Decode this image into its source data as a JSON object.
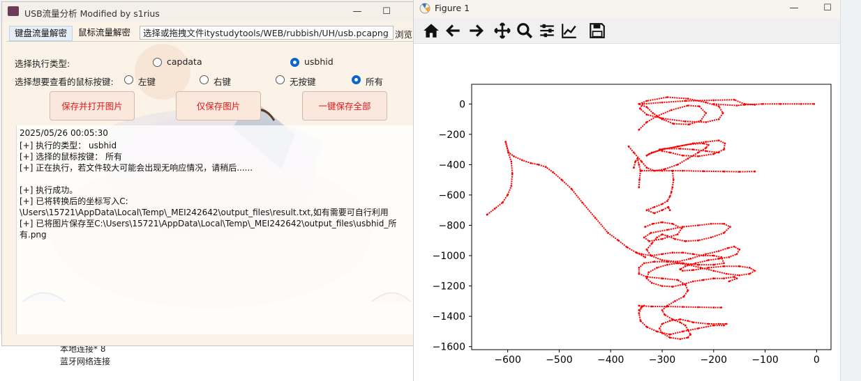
{
  "usb_window": {
    "title": "USB流量分析 Modified by s1rius",
    "minimize": "—",
    "maximize": "☐",
    "tabs": [
      {
        "label": "键盘流量解密"
      },
      {
        "label": "鼠标流量解密"
      }
    ],
    "file_path_value": "选择或拖拽文件itystudytools/WEB/rubbish/UH/usb.pcapng",
    "browse_label": "浏览",
    "exec_type_label": "选择执行类型:",
    "exec_options": [
      {
        "label": "capdata",
        "selected": false
      },
      {
        "label": "usbhid",
        "selected": true
      }
    ],
    "mouse_button_label": "选择想要查看的鼠标按键:",
    "mouse_options": [
      {
        "label": "左键",
        "selected": false
      },
      {
        "label": "右键",
        "selected": false
      },
      {
        "label": "无按键",
        "selected": false
      },
      {
        "label": "所有",
        "selected": true
      }
    ],
    "buttons": {
      "save_open": "保存并打开图片",
      "save_only": "仅保存图片",
      "save_all": "一键保存全部"
    },
    "log_lines": [
      "2025/05/26 00:05:30",
      "[+] 执行的类型： usbhid",
      "[+] 选择的鼠标按键： 所有",
      "[+] 正在执行，若文件较大可能会出现无响应情况，请稍后......",
      "",
      "[+] 执行成功。",
      "[+] 已将转换后的坐标写入C:",
      "\\Users\\15721\\AppData\\Local\\Temp\\_MEI242642\\output_files\\result.txt,如有需要可自行利用",
      "[+] 已将图片保存至C:\\Users\\15721\\AppData\\Local\\Temp\\_MEI242642\\output_files\\usbhid_所",
      "有.png"
    ]
  },
  "desktop": {
    "items": [
      "本地连接* 8",
      "蓝牙网络连接"
    ]
  },
  "figure_window": {
    "title": "Figure 1",
    "minimize": "—",
    "maximize": "☐",
    "toolbar_icons": [
      "home-icon",
      "back-icon",
      "forward-icon",
      "pan-icon",
      "zoom-icon",
      "configure-subplots-icon",
      "edit-axis-icon",
      "save-icon"
    ]
  },
  "chart_data": {
    "type": "scatter",
    "title": "",
    "xlabel": "",
    "ylabel": "",
    "xlim": [
      -670,
      28
    ],
    "ylim": [
      -1620,
      130
    ],
    "xticks": [
      -600,
      -500,
      -400,
      -300,
      -200,
      -100,
      0
    ],
    "yticks": [
      0,
      -200,
      -400,
      -600,
      -800,
      -1000,
      -1200,
      -1400,
      -1600
    ],
    "color": "#ff0000",
    "grid": false,
    "series": [
      {
        "x": [
          -640,
          -625,
          -610,
          -600,
          -593,
          -591,
          -593,
          -599,
          -604,
          -598,
          -588,
          -572,
          -555,
          -540,
          -526,
          -512,
          -495,
          -476,
          -455,
          -430,
          -405,
          -385,
          -368,
          -350,
          -333
        ],
        "y": [
          -730,
          -690,
          -650,
          -600,
          -540,
          -460,
          -380,
          -320,
          -250,
          -320,
          -345,
          -370,
          -390,
          -400,
          -415,
          -450,
          -500,
          -560,
          -650,
          -750,
          -850,
          -900,
          -945,
          -980,
          -1010
        ]
      },
      {
        "x": [
          -345,
          -330,
          -310,
          -282,
          -250,
          -228,
          -215,
          -225,
          -248,
          -278,
          -300,
          -318,
          -330,
          -345,
          -330,
          -290,
          -250,
          -215,
          -190,
          -182,
          -190,
          -215,
          -255,
          -300,
          -330,
          -343,
          -338,
          -300,
          -255,
          -200,
          -160,
          -140,
          -120
        ],
        "y": [
          -170,
          -120,
          -80,
          -40,
          -10,
          -15,
          -60,
          -110,
          -135,
          -130,
          -100,
          -60,
          -20,
          0,
          20,
          45,
          35,
          10,
          -15,
          -60,
          -100,
          -120,
          -115,
          -95,
          -70,
          -30,
          0,
          10,
          20,
          25,
          28,
          0,
          -5
        ]
      },
      {
        "x": [
          -200,
          -155,
          -140,
          -105,
          -70,
          -30,
          -5
        ],
        "y": [
          0,
          -10,
          -5,
          0,
          0,
          0,
          0
        ]
      },
      {
        "x": [
          -365,
          -355,
          -340,
          -330,
          -315,
          -295,
          -270,
          -250,
          -230,
          -215,
          -210,
          -220,
          -245,
          -270,
          -300,
          -320,
          -330,
          -325,
          -300,
          -270,
          -240,
          -215,
          -190,
          -178,
          -180,
          -200,
          -230,
          -260,
          -285,
          -300,
          -305,
          -295,
          -265,
          -240,
          -215,
          -190
        ],
        "y": [
          -280,
          -320,
          -380,
          -420,
          -440,
          -430,
          -400,
          -360,
          -320,
          -290,
          -270,
          -260,
          -265,
          -280,
          -300,
          -320,
          -340,
          -330,
          -300,
          -280,
          -260,
          -250,
          -240,
          -260,
          -300,
          -330,
          -345,
          -340,
          -320,
          -310,
          -300,
          -295,
          -295,
          -300,
          -310,
          -320
        ]
      },
      {
        "x": [
          -355,
          -352,
          -348,
          -345,
          -342,
          -344,
          -345
        ],
        "y": [
          -420,
          -380,
          -360,
          -400,
          -440,
          -500,
          -550
        ]
      },
      {
        "x": [
          -340,
          -300,
          -260,
          -220,
          -180,
          -150,
          -120
        ],
        "y": [
          -440,
          -440,
          -440,
          -443,
          -445,
          -447,
          -445
        ]
      },
      {
        "x": [
          -280,
          -278,
          -280,
          -282,
          -285,
          -290,
          -300,
          -315,
          -330,
          -315,
          -300,
          -288,
          -285
        ],
        "y": [
          -440,
          -500,
          -550,
          -580,
          -610,
          -640,
          -660,
          -680,
          -700,
          -720,
          -700,
          -680,
          -700
        ]
      },
      {
        "x": [
          -333,
          -318,
          -300,
          -280,
          -262,
          -270,
          -300,
          -325,
          -335,
          -322,
          -290,
          -260,
          -230,
          -205,
          -180,
          -168,
          -180,
          -205,
          -230,
          -255,
          -275,
          -290,
          -300,
          -310,
          -320,
          -330,
          -322,
          -300,
          -270,
          -245,
          -215,
          -190,
          -172,
          -160,
          -150,
          -155,
          -170,
          -190,
          -210,
          -235,
          -255,
          -265,
          -260,
          -240,
          -210,
          -180,
          -150,
          -130,
          -120,
          -130,
          -150,
          -175,
          -200,
          -225,
          -250,
          -270,
          -290,
          -310,
          -326,
          -330,
          -320,
          -300,
          -280,
          -260,
          -240,
          -220,
          -200,
          -180,
          -160,
          -155,
          -170
        ],
        "y": [
          -810,
          -790,
          -780,
          -790,
          -820,
          -860,
          -890,
          -905,
          -880,
          -850,
          -830,
          -810,
          -800,
          -790,
          -790,
          -810,
          -850,
          -880,
          -900,
          -905,
          -890,
          -870,
          -860,
          -880,
          -920,
          -960,
          -1000,
          -1030,
          -1040,
          -1020,
          -990,
          -970,
          -950,
          -940,
          -960,
          -990,
          -1010,
          -1020,
          -1030,
          -1050,
          -1070,
          -1090,
          -1100,
          -1095,
          -1080,
          -1070,
          -1070,
          -1080,
          -1100,
          -1120,
          -1130,
          -1120,
          -1100,
          -1080,
          -1060,
          -1050,
          -1060,
          -1080,
          -1110,
          -1150,
          -1180,
          -1200,
          -1205,
          -1190,
          -1170,
          -1160,
          -1150,
          -1150,
          -1140,
          -1150,
          -1170
        ]
      },
      {
        "x": [
          -350,
          -340,
          -320,
          -300,
          -280,
          -260,
          -240,
          -220,
          -200,
          -185,
          -180,
          -200,
          -230,
          -260,
          -290,
          -315,
          -335,
          -345,
          -345,
          -330,
          -300,
          -270,
          -255,
          -250,
          -258,
          -275,
          -290,
          -300,
          -295,
          -280,
          -265,
          -255,
          -250,
          -245,
          -250,
          -265,
          -285,
          -300,
          -305,
          -300,
          -285,
          -265,
          -250,
          -240,
          -210,
          -190,
          -175
        ],
        "y": [
          -980,
          -990,
          -1000,
          -990,
          -980,
          -980,
          -990,
          -1000,
          -1000,
          -1010,
          -1050,
          -1060,
          -1060,
          -1050,
          -1040,
          -1040,
          -1050,
          -1080,
          -1120,
          -1140,
          -1150,
          -1160,
          -1190,
          -1230,
          -1270,
          -1300,
          -1330,
          -1360,
          -1390,
          -1420,
          -1440,
          -1460,
          -1490,
          -1520,
          -1540,
          -1550,
          -1540,
          -1510,
          -1480,
          -1450,
          -1430,
          -1420,
          -1430,
          -1440,
          -1450,
          -1450,
          -1450
        ]
      },
      {
        "x": [
          -345,
          -340,
          -335,
          -340,
          -345,
          -342,
          -330,
          -310,
          -285,
          -260,
          -230,
          -200,
          -180
        ],
        "y": [
          -1360,
          -1340,
          -1330,
          -1340,
          -1380,
          -1430,
          -1470,
          -1500,
          -1520,
          -1500,
          -1480,
          -1460,
          -1460
        ]
      },
      {
        "x": [
          -345,
          -320,
          -290,
          -260,
          -230,
          -200,
          -185
        ],
        "y": [
          -1330,
          -1335,
          -1335,
          -1338,
          -1340,
          -1342,
          -1342
        ]
      }
    ]
  }
}
